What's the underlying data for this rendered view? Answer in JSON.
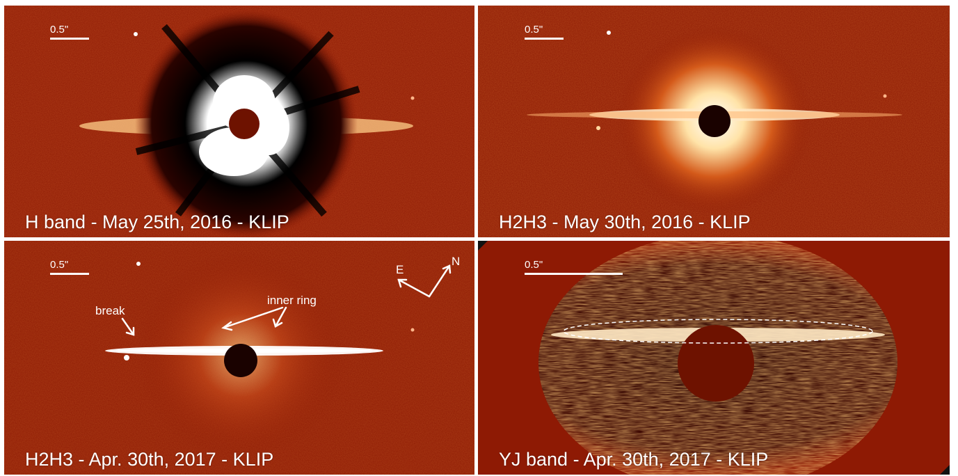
{
  "panels": [
    {
      "caption": "H band - May 25th, 2016 - KLIP",
      "scale_label": "0.5\""
    },
    {
      "caption": "H2H3 - May 30th, 2016 - KLIP",
      "scale_label": "0.5\""
    },
    {
      "caption": "H2H3 - Apr. 30th, 2017 - KLIP",
      "scale_label": "0.5\"",
      "annotations": {
        "break": "break",
        "inner_ring": "inner ring",
        "compass_east": "E",
        "compass_north": "N"
      }
    },
    {
      "caption": "YJ band - Apr. 30th, 2017 - KLIP",
      "scale_label": "0.5\""
    }
  ],
  "colors": {
    "background_red": "#8e1a04",
    "bright_disk": "#ffe9c4",
    "mask": "#6e1200",
    "dark_residual": "#1a0200"
  }
}
